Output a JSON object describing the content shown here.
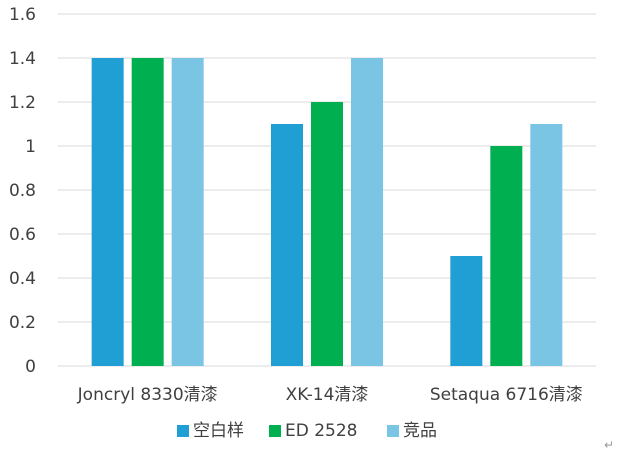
{
  "chart_data": {
    "type": "bar",
    "categories": [
      "Joncryl 8330清漆",
      "XK-14清漆",
      "Setaqua 6716清漆"
    ],
    "series": [
      {
        "name": "空白样",
        "color": "#1f9fd4",
        "values": [
          1.4,
          1.1,
          0.5
        ]
      },
      {
        "name": "ED 2528",
        "color": "#00b050",
        "values": [
          1.4,
          1.2,
          1.0
        ]
      },
      {
        "name": "竞品",
        "color": "#7ac5e4",
        "values": [
          1.4,
          1.4,
          1.1
        ]
      }
    ],
    "y_ticks": [
      "0",
      "0.2",
      "0.4",
      "0.6",
      "0.8",
      "1",
      "1.2",
      "1.4",
      "1.6"
    ],
    "ylim": [
      0,
      1.6
    ],
    "grid": true,
    "legend": "bottom",
    "gridline_color": "#d9d9d9",
    "text_color": "#404040"
  },
  "corner_mark": "↵"
}
